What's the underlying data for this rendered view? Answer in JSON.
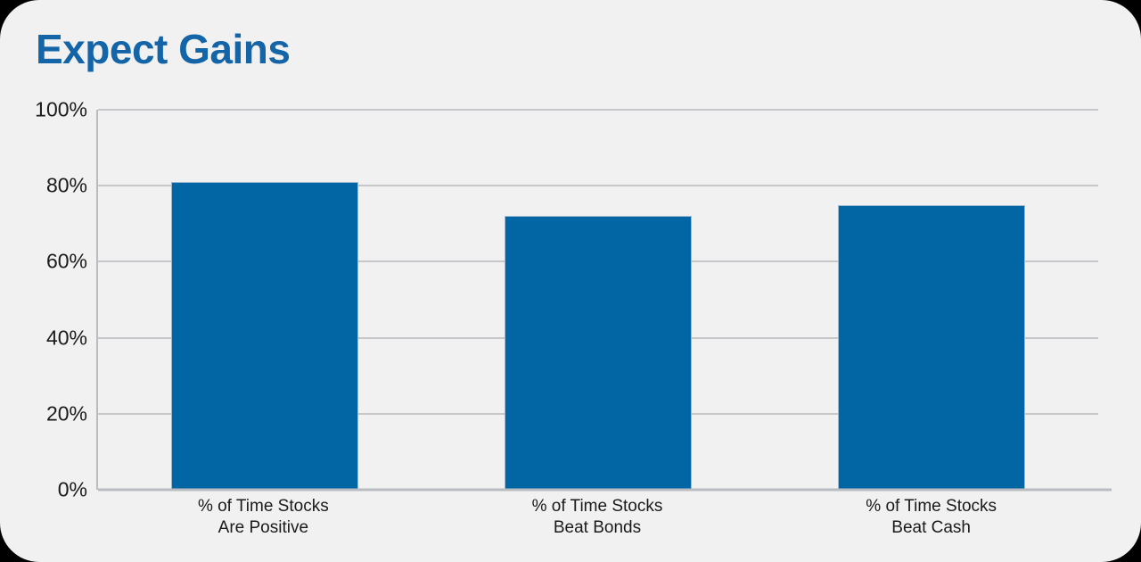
{
  "card": {
    "title": "Expect Gains"
  },
  "colors": {
    "title": "#1464A8",
    "bar_fill": "#0366A4",
    "bar_border": "#9FB9D0",
    "card_background": "#F1F1F1",
    "page_background": "#000000",
    "gridline": "#C7C7CB",
    "axis_line": "#B9BCC0",
    "tick_text": "#1A1A1A"
  },
  "chart_data": {
    "type": "bar",
    "title": "Expect Gains",
    "categories": [
      "% of Time Stocks\nAre Positive",
      "% of Time Stocks\nBeat Bonds",
      "% of Time Stocks\nBeat Cash"
    ],
    "values": [
      81,
      72,
      75
    ],
    "unit": "%",
    "xlabel": "",
    "ylabel": "",
    "ylim": [
      0,
      100
    ],
    "yticks": [
      0,
      20,
      40,
      60,
      80,
      100
    ],
    "ytick_labels": [
      "0%",
      "20%",
      "40%",
      "60%",
      "80%",
      "100%"
    ],
    "grid": "horizontal-major",
    "legend": "none",
    "data_labels": "none"
  }
}
